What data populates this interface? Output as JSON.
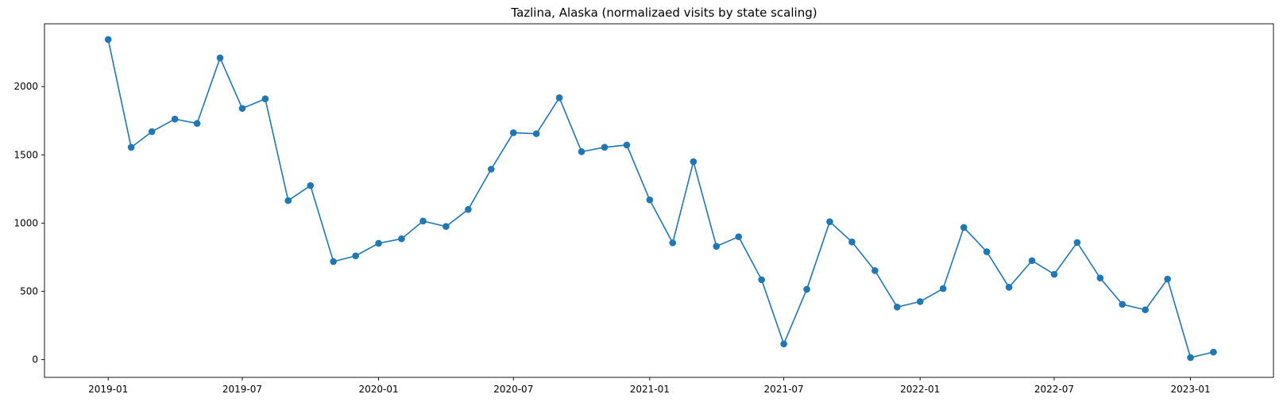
{
  "chart_data": {
    "type": "line",
    "title": "Tazlina, Alaska (normalizaed visits by state scaling)",
    "xlabel": "",
    "ylabel": "",
    "color": "#1f77b4",
    "grid": false,
    "x_ticks": [
      "2019-01",
      "2019-07",
      "2020-01",
      "2020-07",
      "2021-01",
      "2021-07",
      "2022-01",
      "2022-07",
      "2023-01"
    ],
    "y_ticks": [
      0,
      500,
      1000,
      1500,
      2000
    ],
    "ylim": [
      -130,
      2460
    ],
    "xlim": [
      "2018-10-07",
      "2023-04-23"
    ],
    "series": [
      {
        "x": [
          "2019-01",
          "2019-02",
          "2019-03",
          "2019-04",
          "2019-05",
          "2019-06",
          "2019-07",
          "2019-08",
          "2019-09",
          "2019-10",
          "2019-11",
          "2019-12",
          "2020-01",
          "2020-02",
          "2020-03",
          "2020-04",
          "2020-05",
          "2020-06",
          "2020-07",
          "2020-08",
          "2020-09",
          "2020-10",
          "2020-11",
          "2020-12",
          "2021-01",
          "2021-02",
          "2021-03",
          "2021-04",
          "2021-05",
          "2021-06",
          "2021-07",
          "2021-08",
          "2021-09",
          "2021-10",
          "2021-11",
          "2021-12",
          "2022-01",
          "2022-02",
          "2022-03",
          "2022-04",
          "2022-05",
          "2022-06",
          "2022-07",
          "2022-08",
          "2022-09",
          "2022-10",
          "2022-11",
          "2022-12",
          "2023-01",
          "2023-02"
        ],
        "values": [
          2345,
          1555,
          1670,
          1762,
          1730,
          2210,
          1840,
          1910,
          1165,
          1275,
          718,
          760,
          852,
          885,
          1015,
          975,
          1100,
          1395,
          1662,
          1655,
          1918,
          1523,
          1555,
          1572,
          1170,
          855,
          1450,
          830,
          900,
          585,
          115,
          515,
          1010,
          862,
          652,
          385,
          425,
          520,
          968,
          790,
          530,
          725,
          625,
          858,
          598,
          405,
          365,
          590,
          15,
          55
        ]
      }
    ]
  }
}
